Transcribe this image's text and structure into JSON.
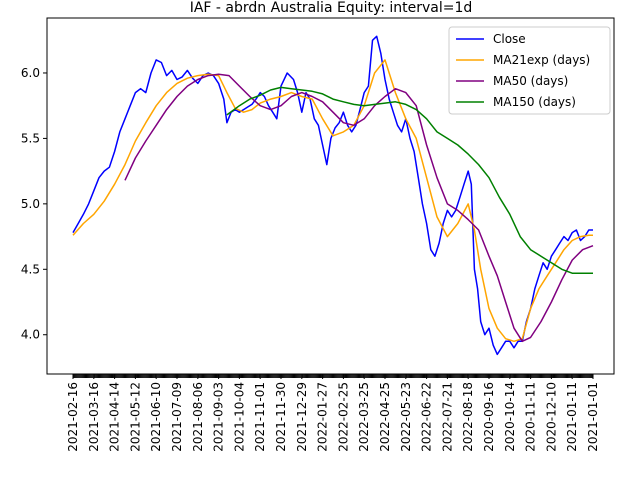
{
  "chart_data": {
    "type": "line",
    "title": "IAF - abrdn Australia Equity: interval=1d",
    "xlabel": "",
    "ylabel": "",
    "ylim": [
      3.7,
      6.42
    ],
    "yticks": [
      4.0,
      4.5,
      5.0,
      5.5,
      6.0
    ],
    "ytick_labels": [
      "4.0",
      "4.5",
      "5.0",
      "5.5",
      "6.0"
    ],
    "x_tick_labels": [
      "2021-02-16",
      "2021-03-16",
      "2021-04-14",
      "2021-05-12",
      "2021-06-10",
      "2021-07-09",
      "2021-08-06",
      "2021-09-03",
      "2021-10-04",
      "2021-11-01",
      "2021-11-30",
      "2021-12-29",
      "2022-01-27",
      "2022-02-25",
      "2022-03-25",
      "2022-04-25",
      "2022-05-23",
      "2022-06-22",
      "2022-07-21",
      "2022-08-18",
      "2020-09-16",
      "2020-10-14",
      "2020-11-11",
      "2020-12-10",
      "2021-01-11",
      "2021-01-01"
    ],
    "legend_position": "upper right",
    "grid": false,
    "series": [
      {
        "name": "Close",
        "color": "#0000ff",
        "points": [
          [
            0,
            4.78
          ],
          [
            0.25,
            4.85
          ],
          [
            0.5,
            4.92
          ],
          [
            0.75,
            5.0
          ],
          [
            1,
            5.1
          ],
          [
            1.25,
            5.2
          ],
          [
            1.5,
            5.25
          ],
          [
            1.75,
            5.28
          ],
          [
            2,
            5.4
          ],
          [
            2.25,
            5.55
          ],
          [
            2.5,
            5.65
          ],
          [
            2.75,
            5.75
          ],
          [
            3,
            5.85
          ],
          [
            3.25,
            5.88
          ],
          [
            3.5,
            5.85
          ],
          [
            3.75,
            6.0
          ],
          [
            4,
            6.1
          ],
          [
            4.25,
            6.08
          ],
          [
            4.5,
            5.98
          ],
          [
            4.75,
            6.02
          ],
          [
            5,
            5.95
          ],
          [
            5.25,
            5.97
          ],
          [
            5.5,
            6.02
          ],
          [
            5.75,
            5.96
          ],
          [
            6,
            5.92
          ],
          [
            6.25,
            5.98
          ],
          [
            6.5,
            6.0
          ],
          [
            6.75,
            5.98
          ],
          [
            7,
            5.92
          ],
          [
            7.25,
            5.8
          ],
          [
            7.4,
            5.62
          ],
          [
            7.6,
            5.7
          ],
          [
            7.8,
            5.72
          ],
          [
            8,
            5.7
          ],
          [
            8.2,
            5.72
          ],
          [
            8.4,
            5.74
          ],
          [
            8.6,
            5.76
          ],
          [
            8.8,
            5.8
          ],
          [
            9,
            5.85
          ],
          [
            9.2,
            5.82
          ],
          [
            9.4,
            5.75
          ],
          [
            9.6,
            5.7
          ],
          [
            9.8,
            5.65
          ],
          [
            10,
            5.9
          ],
          [
            10.3,
            6.0
          ],
          [
            10.6,
            5.95
          ],
          [
            10.8,
            5.85
          ],
          [
            11,
            5.7
          ],
          [
            11.2,
            5.85
          ],
          [
            11.4,
            5.8
          ],
          [
            11.6,
            5.65
          ],
          [
            11.8,
            5.6
          ],
          [
            12,
            5.45
          ],
          [
            12.2,
            5.3
          ],
          [
            12.4,
            5.5
          ],
          [
            12.6,
            5.58
          ],
          [
            12.8,
            5.62
          ],
          [
            13,
            5.7
          ],
          [
            13.2,
            5.6
          ],
          [
            13.4,
            5.55
          ],
          [
            13.6,
            5.6
          ],
          [
            13.8,
            5.72
          ],
          [
            14,
            5.85
          ],
          [
            14.2,
            5.9
          ],
          [
            14.4,
            6.25
          ],
          [
            14.6,
            6.28
          ],
          [
            14.8,
            6.15
          ],
          [
            15,
            5.95
          ],
          [
            15.2,
            5.8
          ],
          [
            15.4,
            5.7
          ],
          [
            15.6,
            5.6
          ],
          [
            15.8,
            5.55
          ],
          [
            16,
            5.65
          ],
          [
            16.2,
            5.5
          ],
          [
            16.4,
            5.4
          ],
          [
            16.6,
            5.2
          ],
          [
            16.8,
            5.0
          ],
          [
            17,
            4.85
          ],
          [
            17.2,
            4.65
          ],
          [
            17.4,
            4.6
          ],
          [
            17.6,
            4.7
          ],
          [
            17.8,
            4.85
          ],
          [
            18,
            4.95
          ],
          [
            18.2,
            4.9
          ],
          [
            18.4,
            4.95
          ],
          [
            18.6,
            5.05
          ],
          [
            18.8,
            5.15
          ],
          [
            19,
            5.25
          ],
          [
            19.15,
            5.15
          ],
          [
            19.3,
            4.5
          ],
          [
            19.45,
            4.35
          ],
          [
            19.6,
            4.1
          ],
          [
            19.8,
            4.0
          ],
          [
            20,
            4.05
          ],
          [
            20.2,
            3.92
          ],
          [
            20.4,
            3.85
          ],
          [
            20.6,
            3.9
          ],
          [
            20.8,
            3.95
          ],
          [
            21,
            3.95
          ],
          [
            21.2,
            3.9
          ],
          [
            21.4,
            3.95
          ],
          [
            21.6,
            3.95
          ],
          [
            21.8,
            4.1
          ],
          [
            22,
            4.2
          ],
          [
            22.2,
            4.35
          ],
          [
            22.4,
            4.45
          ],
          [
            22.6,
            4.55
          ],
          [
            22.8,
            4.5
          ],
          [
            23,
            4.6
          ],
          [
            23.2,
            4.65
          ],
          [
            23.4,
            4.7
          ],
          [
            23.6,
            4.75
          ],
          [
            23.8,
            4.72
          ],
          [
            24,
            4.78
          ],
          [
            24.2,
            4.8
          ],
          [
            24.4,
            4.72
          ],
          [
            24.6,
            4.75
          ],
          [
            24.8,
            4.8
          ],
          [
            25,
            4.8
          ]
        ]
      },
      {
        "name": "MA21exp (days)",
        "color": "#ffa500",
        "points": [
          [
            0,
            4.76
          ],
          [
            0.5,
            4.85
          ],
          [
            1,
            4.92
          ],
          [
            1.5,
            5.02
          ],
          [
            2,
            5.15
          ],
          [
            2.5,
            5.3
          ],
          [
            3,
            5.48
          ],
          [
            3.5,
            5.62
          ],
          [
            4,
            5.75
          ],
          [
            4.5,
            5.85
          ],
          [
            5,
            5.92
          ],
          [
            5.5,
            5.96
          ],
          [
            6,
            5.98
          ],
          [
            6.5,
            5.99
          ],
          [
            7,
            5.98
          ],
          [
            7.4,
            5.85
          ],
          [
            7.8,
            5.73
          ],
          [
            8.2,
            5.7
          ],
          [
            8.6,
            5.72
          ],
          [
            9,
            5.77
          ],
          [
            9.5,
            5.8
          ],
          [
            10,
            5.82
          ],
          [
            10.5,
            5.85
          ],
          [
            11,
            5.82
          ],
          [
            11.5,
            5.8
          ],
          [
            12,
            5.65
          ],
          [
            12.5,
            5.52
          ],
          [
            13,
            5.55
          ],
          [
            13.5,
            5.6
          ],
          [
            14,
            5.75
          ],
          [
            14.5,
            6.0
          ],
          [
            15,
            6.1
          ],
          [
            15.5,
            5.85
          ],
          [
            16,
            5.65
          ],
          [
            16.5,
            5.5
          ],
          [
            17,
            5.2
          ],
          [
            17.5,
            4.9
          ],
          [
            18,
            4.75
          ],
          [
            18.5,
            4.85
          ],
          [
            19,
            5.0
          ],
          [
            19.3,
            4.8
          ],
          [
            19.6,
            4.5
          ],
          [
            20,
            4.2
          ],
          [
            20.4,
            4.05
          ],
          [
            20.8,
            3.97
          ],
          [
            21.2,
            3.95
          ],
          [
            21.6,
            3.97
          ],
          [
            22,
            4.2
          ],
          [
            22.4,
            4.35
          ],
          [
            22.8,
            4.45
          ],
          [
            23.2,
            4.55
          ],
          [
            23.6,
            4.65
          ],
          [
            24,
            4.72
          ],
          [
            24.4,
            4.75
          ],
          [
            24.8,
            4.76
          ],
          [
            25,
            4.76
          ]
        ]
      },
      {
        "name": "MA50 (days)",
        "color": "#800080",
        "points": [
          [
            2.5,
            5.18
          ],
          [
            3,
            5.35
          ],
          [
            3.5,
            5.48
          ],
          [
            4,
            5.6
          ],
          [
            4.5,
            5.72
          ],
          [
            5,
            5.82
          ],
          [
            5.5,
            5.9
          ],
          [
            6,
            5.95
          ],
          [
            6.5,
            5.98
          ],
          [
            7,
            5.99
          ],
          [
            7.5,
            5.98
          ],
          [
            8,
            5.9
          ],
          [
            8.5,
            5.82
          ],
          [
            9,
            5.75
          ],
          [
            9.5,
            5.72
          ],
          [
            10,
            5.75
          ],
          [
            10.5,
            5.82
          ],
          [
            11,
            5.85
          ],
          [
            11.5,
            5.82
          ],
          [
            12,
            5.78
          ],
          [
            12.5,
            5.7
          ],
          [
            13,
            5.62
          ],
          [
            13.5,
            5.6
          ],
          [
            14,
            5.65
          ],
          [
            14.5,
            5.75
          ],
          [
            15,
            5.82
          ],
          [
            15.5,
            5.88
          ],
          [
            16,
            5.85
          ],
          [
            16.5,
            5.75
          ],
          [
            17,
            5.45
          ],
          [
            17.5,
            5.2
          ],
          [
            18,
            5.0
          ],
          [
            18.5,
            4.95
          ],
          [
            19,
            4.88
          ],
          [
            19.5,
            4.8
          ],
          [
            20,
            4.6
          ],
          [
            20.4,
            4.45
          ],
          [
            20.8,
            4.25
          ],
          [
            21.2,
            4.05
          ],
          [
            21.6,
            3.95
          ],
          [
            22,
            3.98
          ],
          [
            22.5,
            4.1
          ],
          [
            23,
            4.25
          ],
          [
            23.5,
            4.42
          ],
          [
            24,
            4.57
          ],
          [
            24.5,
            4.65
          ],
          [
            25,
            4.68
          ]
        ]
      },
      {
        "name": "MA150 (days)",
        "color": "#008000",
        "points": [
          [
            7.4,
            5.68
          ],
          [
            8,
            5.75
          ],
          [
            8.5,
            5.8
          ],
          [
            9,
            5.83
          ],
          [
            9.5,
            5.87
          ],
          [
            10,
            5.89
          ],
          [
            10.5,
            5.88
          ],
          [
            11,
            5.87
          ],
          [
            11.5,
            5.86
          ],
          [
            12,
            5.84
          ],
          [
            12.5,
            5.8
          ],
          [
            13,
            5.78
          ],
          [
            13.5,
            5.76
          ],
          [
            14,
            5.75
          ],
          [
            14.5,
            5.76
          ],
          [
            15,
            5.77
          ],
          [
            15.5,
            5.78
          ],
          [
            16,
            5.76
          ],
          [
            16.5,
            5.72
          ],
          [
            17,
            5.65
          ],
          [
            17.5,
            5.55
          ],
          [
            18,
            5.5
          ],
          [
            18.5,
            5.45
          ],
          [
            19,
            5.38
          ],
          [
            19.5,
            5.3
          ],
          [
            20,
            5.2
          ],
          [
            20.5,
            5.05
          ],
          [
            21,
            4.92
          ],
          [
            21.5,
            4.75
          ],
          [
            22,
            4.65
          ],
          [
            22.5,
            4.6
          ],
          [
            23,
            4.55
          ],
          [
            23.5,
            4.5
          ],
          [
            24,
            4.47
          ],
          [
            24.5,
            4.47
          ],
          [
            25,
            4.47
          ]
        ]
      }
    ]
  }
}
